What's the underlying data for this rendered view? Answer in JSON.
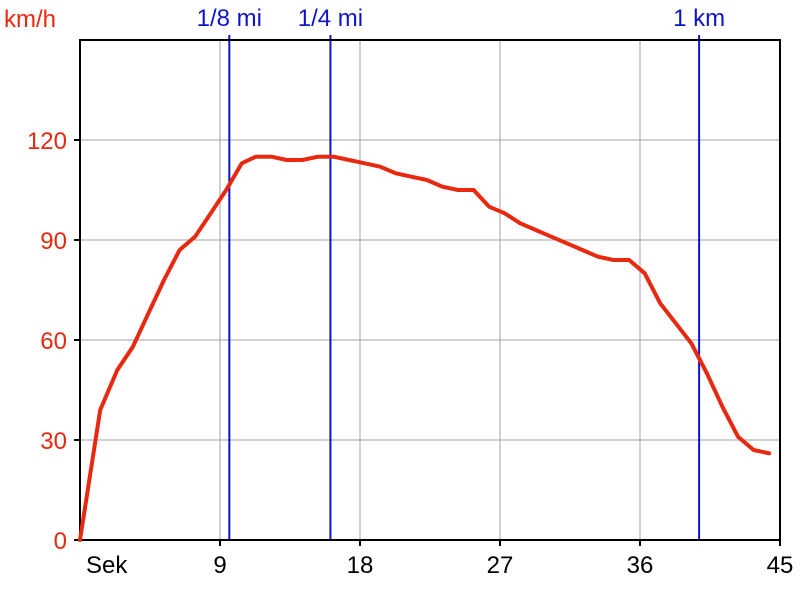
{
  "chart_data": {
    "type": "line",
    "ylabel": "km/h",
    "xlabel": "Sek",
    "xlim": [
      0,
      45
    ],
    "ylim": [
      0,
      150
    ],
    "xticks": [
      9,
      18,
      27,
      36,
      45
    ],
    "yticks": [
      0,
      30,
      60,
      90,
      120
    ],
    "grid": true,
    "series": [
      {
        "color": "#e8280f",
        "x": [
          0,
          1.3,
          2.4,
          3.4,
          4.4,
          5.4,
          6.4,
          7.4,
          8.4,
          9.4,
          10.4,
          11.3,
          12.3,
          13.3,
          14.3,
          15.3,
          16.3,
          17.3,
          18.3,
          19.3,
          20.3,
          21.3,
          22.3,
          23.3,
          24.3,
          25.3,
          26.3,
          27.3,
          28.3,
          29.3,
          30.3,
          31.3,
          32.3,
          33.3,
          34.3,
          35.3,
          36.3,
          37.3,
          38.3,
          39.3,
          40.3,
          41.3,
          42.3,
          43.3,
          44.3
        ],
        "y": [
          0,
          39,
          51,
          58,
          68,
          78,
          87,
          91,
          98,
          105,
          113,
          115,
          115,
          114,
          114,
          115,
          115,
          114,
          113,
          112,
          110,
          109,
          108,
          106,
          105,
          105,
          100,
          98,
          95,
          93,
          91,
          89,
          87,
          85,
          84,
          84,
          80,
          71,
          65,
          59,
          50,
          40,
          31,
          27,
          26
        ]
      }
    ],
    "markers": [
      {
        "label": "1/8 mi",
        "x": 9.6
      },
      {
        "label": "1/4 mi",
        "x": 16.1
      },
      {
        "label": "1 km",
        "x": 39.8
      }
    ],
    "colors": {
      "axis_text_y": "#e8280f",
      "axis_text_x": "#000000",
      "marker_color": "#0f14c8",
      "grid": "#a0a0a0",
      "frame": "#000000"
    }
  }
}
